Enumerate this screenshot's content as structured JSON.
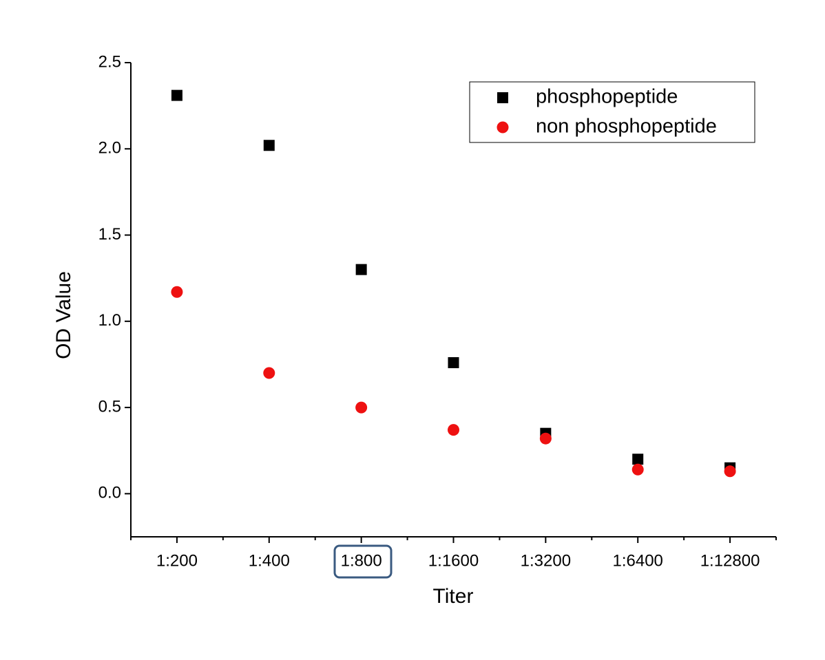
{
  "chart_data": {
    "type": "scatter",
    "x_label": "Titer",
    "y_label": "OD Value",
    "categories": [
      "1:200",
      "1:400",
      "1:800",
      "1:1600",
      "1:3200",
      "1:6400",
      "1:12800"
    ],
    "series": [
      {
        "name": "phosphopeptide",
        "color": "#000000",
        "marker": "square",
        "values": [
          2.31,
          2.02,
          1.3,
          0.76,
          0.35,
          0.2,
          0.15
        ]
      },
      {
        "name": "non phosphopeptide",
        "color": "#ee1111",
        "marker": "circle",
        "values": [
          1.17,
          0.7,
          0.5,
          0.37,
          0.32,
          0.14,
          0.13
        ]
      }
    ],
    "ylim": [
      -0.25,
      2.5
    ],
    "yticks": [
      {
        "value": 0,
        "label": "0.0"
      },
      0.5,
      {
        "value": 1,
        "label": "1.0"
      },
      1.5,
      {
        "value": 2,
        "label": "2.0"
      },
      2.5
    ],
    "legend": "upper right",
    "grid": false
  }
}
